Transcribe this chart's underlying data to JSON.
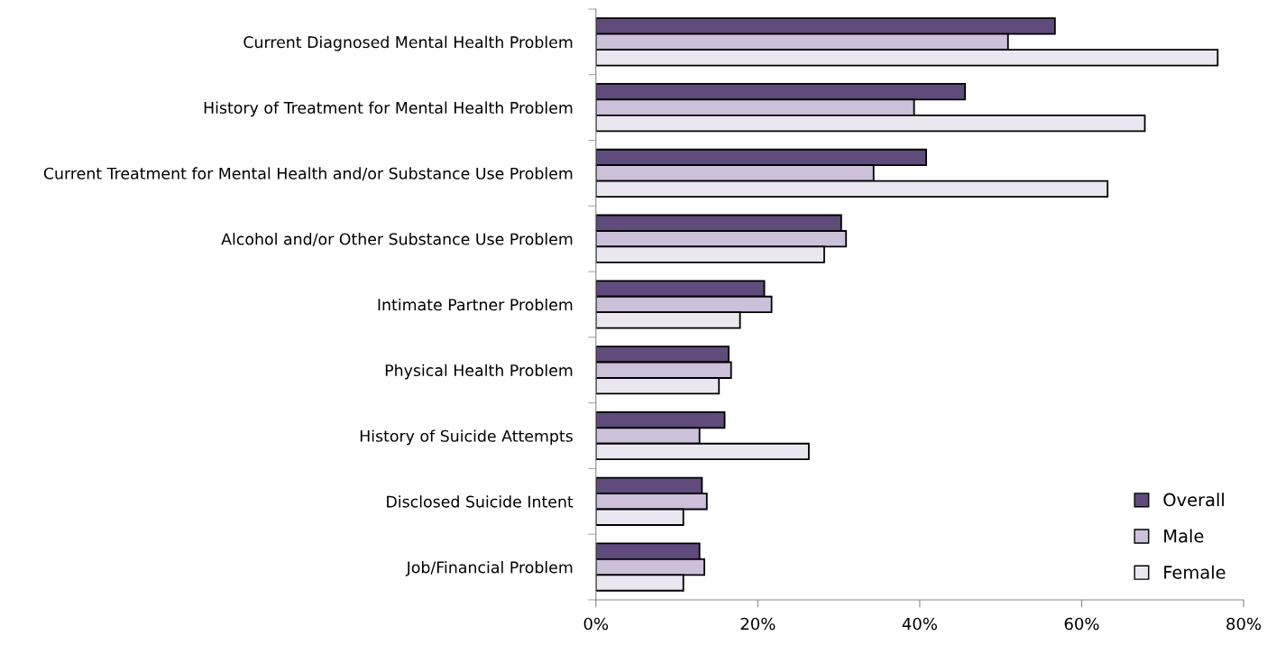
{
  "chart_data": {
    "type": "bar",
    "orientation": "horizontal",
    "categories": [
      "Current Diagnosed Mental Health Problem",
      "History of Treatment for Mental Health Problem",
      "Current Treatment for Mental Health and/or Substance Use Problem",
      "Alcohol and/or Other Substance Use Problem",
      "Intimate Partner Problem",
      "Physical Health Problem",
      "History of Suicide Attempts",
      "Disclosed Suicide Intent",
      "Job/Financial Problem"
    ],
    "series": [
      {
        "name": "Overall",
        "color": "#5f4b7c",
        "values": [
          56.7,
          45.6,
          40.8,
          30.3,
          20.8,
          16.4,
          15.9,
          13.1,
          12.8
        ]
      },
      {
        "name": "Male",
        "color": "#ccc0da",
        "values": [
          50.9,
          39.3,
          34.3,
          30.9,
          21.7,
          16.7,
          12.8,
          13.7,
          13.4
        ]
      },
      {
        "name": "Female",
        "color": "#ebe7f0",
        "values": [
          76.8,
          67.8,
          63.2,
          28.2,
          17.8,
          15.2,
          26.3,
          10.8,
          10.8
        ]
      }
    ],
    "xlim": [
      0,
      80
    ],
    "xticks": [
      {
        "value": 0,
        "label": "0%"
      },
      {
        "value": 20,
        "label": "20%"
      },
      {
        "value": 40,
        "label": "40%"
      },
      {
        "value": 60,
        "label": "60%"
      },
      {
        "value": 80,
        "label": "80%"
      }
    ],
    "grid": false,
    "legend": "bottom right"
  }
}
